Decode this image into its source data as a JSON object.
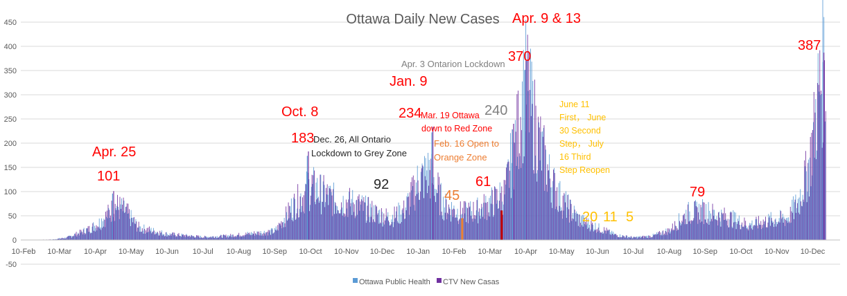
{
  "chart_data": {
    "type": "bar",
    "title": "Ottawa Daily New Cases",
    "xlabel": "",
    "ylabel": "",
    "ylim": [
      -50,
      450
    ],
    "yticks": [
      -50,
      0,
      50,
      100,
      150,
      200,
      250,
      300,
      350,
      400,
      450
    ],
    "xticks": [
      "10-Feb",
      "10-Mar",
      "10-Apr",
      "10-May",
      "10-Jun",
      "10-Jul",
      "10-Aug",
      "10-Sep",
      "10-Oct",
      "10-Nov",
      "10-Dec",
      "10-Jan",
      "10-Feb",
      "10-Mar",
      "10-Apr",
      "10-May",
      "10-Jun",
      "10-Jul",
      "10-Aug",
      "10-Sep",
      "10-Oct",
      "10-Nov",
      "10-Dec"
    ],
    "grid": true,
    "legend_position": "bottom",
    "series": [
      {
        "name": "Ottawa Public Health",
        "color": "#5b9bd5"
      },
      {
        "name": "CTV New Casas",
        "color": "#7030a0"
      }
    ],
    "trend_anchors": {
      "x_tick_index": [
        0,
        0.8,
        1.2,
        1.8,
        2.1,
        2.3,
        2.55,
        2.8,
        3.2,
        4.0,
        5.0,
        5.6,
        6.2,
        7.0,
        7.5,
        8.0,
        8.3,
        8.7,
        9.2,
        9.8,
        10.2,
        10.6,
        11.0,
        11.3,
        11.7,
        12.2,
        12.6,
        13.0,
        13.4,
        13.7,
        14.0,
        14.3,
        14.7,
        15.0,
        15.5,
        16.0,
        16.5,
        17.0,
        17.5,
        18.0,
        18.5,
        19.0,
        19.3,
        19.7,
        20.2,
        20.8,
        21.3,
        21.6,
        21.9,
        22.15,
        22.3
      ],
      "cases": [
        0,
        1,
        5,
        22,
        35,
        50,
        70,
        60,
        25,
        12,
        6,
        8,
        12,
        18,
        70,
        110,
        95,
        80,
        75,
        55,
        45,
        60,
        120,
        140,
        70,
        55,
        60,
        75,
        95,
        200,
        320,
        210,
        120,
        80,
        40,
        25,
        10,
        5,
        8,
        20,
        55,
        60,
        50,
        45,
        30,
        40,
        45,
        80,
        160,
        300,
        360
      ]
    },
    "annotations": [
      {
        "text": "Apr. 25",
        "color": "#ff0000"
      },
      {
        "text": "101",
        "color": "#ff0000"
      },
      {
        "text": "Oct. 8",
        "color": "#ff0000"
      },
      {
        "text": "183",
        "color": "#ff0000"
      },
      {
        "text": "Dec. 26, All Ontario",
        "color": "#262626"
      },
      {
        "text": "Lockdown to Grey Zone",
        "color": "#262626"
      },
      {
        "text": "92",
        "color": "#262626"
      },
      {
        "text": "Jan. 9",
        "color": "#ff0000"
      },
      {
        "text": "234",
        "color": "#ff0000"
      },
      {
        "text": "Mar. 19 Ottawa",
        "color": "#ff0000"
      },
      {
        "text": "down to Red Zone",
        "color": "#ff0000"
      },
      {
        "text": "240",
        "color": "#7f7f7f"
      },
      {
        "text": "Feb. 16 Open to",
        "color": "#ed7d31"
      },
      {
        "text": "Orange Zone",
        "color": "#ed7d31"
      },
      {
        "text": "45",
        "color": "#ed7d31"
      },
      {
        "text": "61",
        "color": "#ff0000"
      },
      {
        "text": "Apr. 3 Ontarion Lockdown",
        "color": "#7f7f7f"
      },
      {
        "text": "370",
        "color": "#ff0000"
      },
      {
        "text": "Apr. 9 & 13",
        "color": "#ff0000"
      },
      {
        "text": "June 11",
        "color": "#ffc000"
      },
      {
        "text": "First， June",
        "color": "#ffc000"
      },
      {
        "text": "30 Second",
        "color": "#ffc000"
      },
      {
        "text": "Step， July",
        "color": "#ffc000"
      },
      {
        "text": "16 Third",
        "color": "#ffc000"
      },
      {
        "text": "Step Reopen",
        "color": "#ffc000"
      },
      {
        "text": "20",
        "color": "#ffc000"
      },
      {
        "text": "11",
        "color": "#ffc000"
      },
      {
        "text": "5",
        "color": "#ffc000"
      },
      {
        "text": "79",
        "color": "#ff0000"
      },
      {
        "text": "387",
        "color": "#ff0000"
      }
    ],
    "highlighted_peaks": [
      {
        "x_tick_index": 2.5,
        "value": 101
      },
      {
        "x_tick_index": 7.93,
        "value": 183
      },
      {
        "x_tick_index": 11.4,
        "value": 234
      },
      {
        "x_tick_index": 13.65,
        "value": 240
      },
      {
        "x_tick_index": 14.0,
        "value": 370
      },
      {
        "x_tick_index": 22.3,
        "value": 387
      }
    ],
    "marker_bars": [
      {
        "x_tick_index": 12.2,
        "value": 45,
        "color": "#ed7d31"
      },
      {
        "x_tick_index": 13.3,
        "value": 61,
        "color": "#c00000"
      }
    ]
  }
}
